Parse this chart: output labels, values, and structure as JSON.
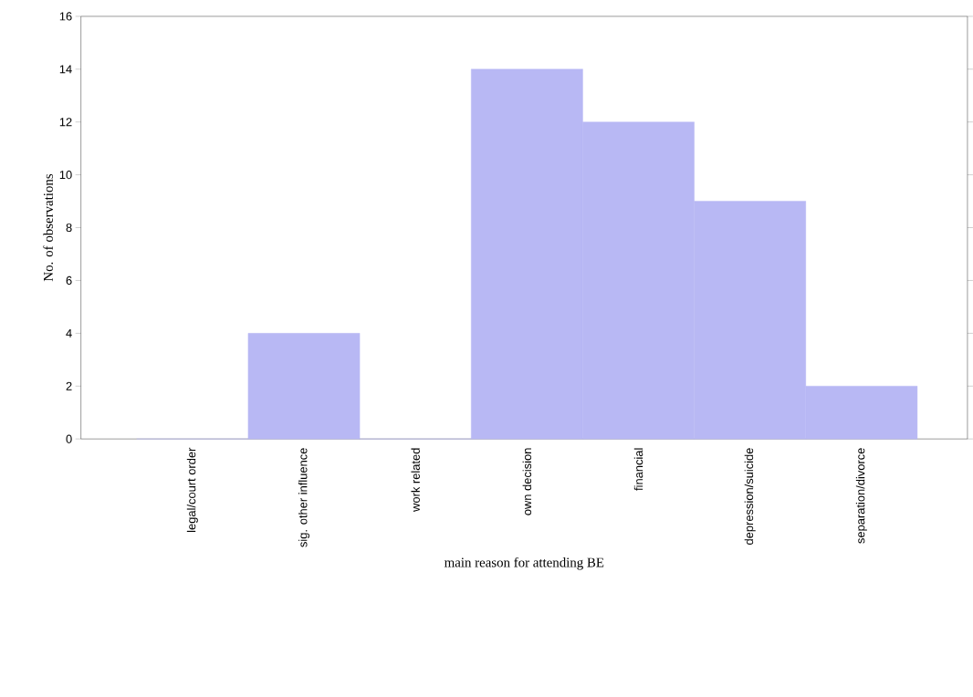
{
  "chart_data": {
    "type": "bar",
    "xlabel": "main reason for attending BE",
    "ylabel": "No. of observations",
    "categories": [
      "legal/court order",
      "sig. other influence",
      "work related",
      "own decision",
      "financial",
      "depression/suicide",
      "separation/divorce"
    ],
    "values": [
      0,
      4,
      0,
      14,
      12,
      9,
      2
    ],
    "color": "#b8b8f4",
    "ylim": [
      0,
      16
    ],
    "yticks": [
      0,
      2,
      4,
      6,
      8,
      10,
      12,
      14,
      16
    ],
    "grid": false
  }
}
